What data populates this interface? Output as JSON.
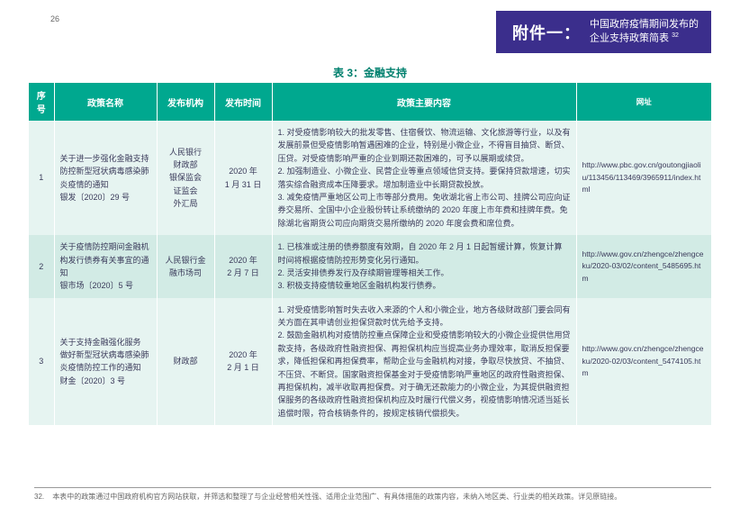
{
  "page_number": "26",
  "header": {
    "attachment_label": "附件一：",
    "attachment_line1": "中国政府疫情期间发布的",
    "attachment_line2": "企业支持政策简表",
    "attachment_sup": "32"
  },
  "table": {
    "title": "表 3：金融支持",
    "headers": {
      "seq": "序号",
      "name": "政策名称",
      "org": "发布机构",
      "date": "发布时间",
      "content": "政策主要内容",
      "url": "网址"
    },
    "rows": [
      {
        "seq": "1",
        "name": "关于进一步强化金融支持防控新型冠状病毒感染肺炎疫情的通知\n银发〔2020〕29 号",
        "org": "人民银行\n财政部\n银保监会\n证监会\n外汇局",
        "date": "2020 年\n1 月 31 日",
        "content": "1. 对受疫情影响较大的批发零售、住宿餐饮、物流运输、文化旅游等行业，以及有发展前景但受疫情影响暂遇困难的企业，特别是小微企业，不得盲目抽贷、断贷、压贷。对受疫情影响严重的企业到期还款困难的，可予以展期或续贷。\n2. 加强制造业、小微企业、民营企业等重点领域信贷支持。要保持贷款增速，切实落实综合融资成本压降要求。增加制造业中长期贷款投放。\n3. 减免疫情严重地区公司上市等部分费用。免收湖北省上市公司、挂牌公司应向证券交易所、全国中小企业股份转让系统缴纳的 2020 年度上市年费和挂牌年费。免除湖北省期货公司应向期货交易所缴纳的 2020 年度会费和席位费。",
        "url": "http://www.pbc.gov.cn/goutongjiaoliu/113456/113469/3965911/index.html"
      },
      {
        "seq": "2",
        "name": "关于疫情防控期间金融机构发行债券有关事宜的通知\n银市场〔2020〕5 号",
        "org": "人民银行金融市场司",
        "date": "2020 年\n2 月 7 日",
        "content": "1. 已核准或注册的债券额度有效期，自 2020 年 2 月 1 日起暂缓计算，恢复计算时间将根据疫情防控形势变化另行通知。\n2. 灵活安排债券发行及存续期管理等相关工作。\n3. 积极支持疫情较重地区金融机构发行债券。",
        "url": "http://www.gov.cn/zhengce/zhengceku/2020-03/02/content_5485695.htm"
      },
      {
        "seq": "3",
        "name": "关于支持金融强化服务 做好新型冠状病毒感染肺炎疫情防控工作的通知\n财金〔2020〕3 号",
        "org": "财政部",
        "date": "2020 年\n2 月 1 日",
        "content": "1. 对受疫情影响暂时失去收入来源的个人和小微企业，地方各级财政部门要会同有关方面在其申请创业担保贷款时优先给予支持。\n2. 鼓励金融机构对疫情防控重点保障企业和受疫情影响较大的小微企业提供信用贷款支持，各级政府性融资担保、再担保机构应当提高业务办理效率，取消反担保要求，降低担保和再担保费率，帮助企业与金融机构对接，争取尽快放贷、不抽贷、不压贷、不断贷。国家融资担保基金对于受疫情影响严重地区的政府性融资担保、再担保机构，减半收取再担保费。对于确无还款能力的小微企业，为其提供融资担保服务的各级政府性融资担保机构应及时履行代偿义务，视疫情影响情况适当延长追偿时限，符合核销条件的，按规定核销代偿损失。",
        "url": "http://www.gov.cn/zhengce/zhengceku/2020-02/03/content_5474105.htm"
      }
    ]
  },
  "footnote": {
    "num": "32.",
    "text": "本表中的政策通过中国政府机构官方网站获取，并筛选和整理了与企业经营相关性强、适用企业范围广、有具体措施的政策内容，未纳入地区类、行业类的相关政策。详见原链接。"
  },
  "colors": {
    "header_purple": "#3b2e8c",
    "table_header_green": "#00a88f",
    "row_odd": "#e6f4f1",
    "row_even": "#d2ebe5",
    "title_green": "#00806e"
  }
}
